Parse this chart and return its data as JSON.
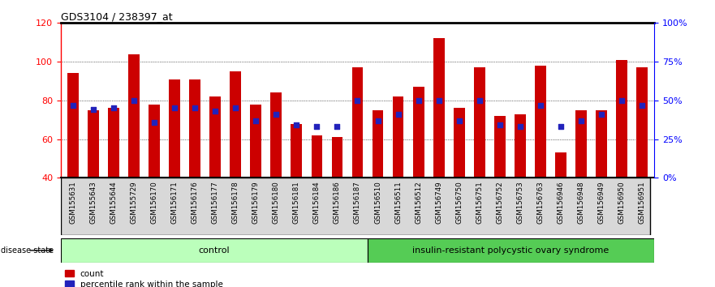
{
  "title": "GDS3104 / 238397_at",
  "samples": [
    "GSM155631",
    "GSM155643",
    "GSM155644",
    "GSM155729",
    "GSM156170",
    "GSM156171",
    "GSM156176",
    "GSM156177",
    "GSM156178",
    "GSM156179",
    "GSM156180",
    "GSM156181",
    "GSM156184",
    "GSM156186",
    "GSM156187",
    "GSM156510",
    "GSM156511",
    "GSM156512",
    "GSM156749",
    "GSM156750",
    "GSM156751",
    "GSM156752",
    "GSM156753",
    "GSM156763",
    "GSM156946",
    "GSM156948",
    "GSM156949",
    "GSM156950",
    "GSM156951"
  ],
  "red_values": [
    94,
    75,
    76,
    104,
    78,
    91,
    91,
    82,
    95,
    78,
    84,
    68,
    62,
    61,
    97,
    75,
    82,
    87,
    112,
    76,
    97,
    72,
    73,
    98,
    53,
    75,
    75,
    101,
    97
  ],
  "blue_pct": [
    47,
    44,
    45,
    50,
    36,
    45,
    45,
    43,
    45,
    37,
    41,
    34,
    33,
    33,
    50,
    37,
    41,
    50,
    50,
    37,
    50,
    34,
    33,
    47,
    33,
    37,
    41,
    50,
    47
  ],
  "control_count": 15,
  "ylim_left": [
    40,
    120
  ],
  "ylim_right": [
    0,
    100
  ],
  "right_ticks": [
    0,
    25,
    50,
    75,
    100
  ],
  "right_tick_labels": [
    "0%",
    "25%",
    "50%",
    "75%",
    "100%"
  ],
  "left_ticks": [
    40,
    60,
    80,
    100,
    120
  ],
  "bar_color": "#cc0000",
  "dot_color": "#2222bb",
  "control_color": "#bbffbb",
  "disease_color": "#55cc55",
  "grid_color": "#000000"
}
